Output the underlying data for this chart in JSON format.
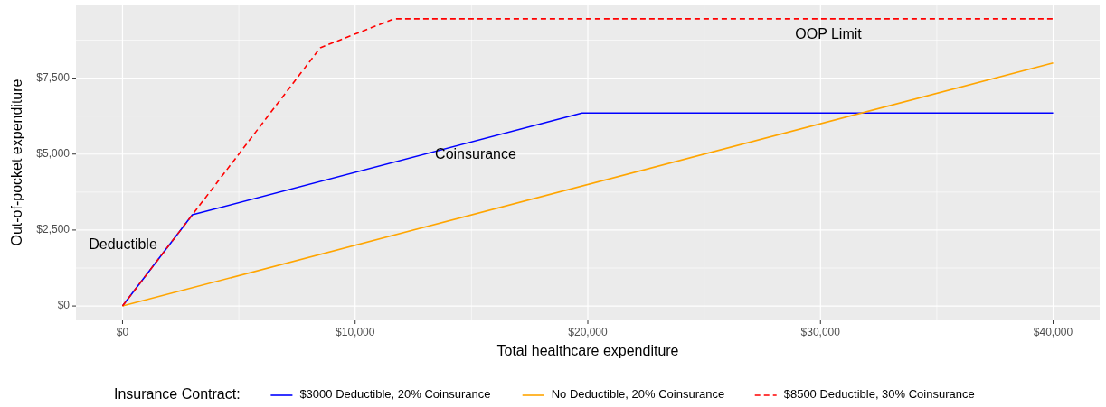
{
  "chart_data": {
    "type": "line",
    "xlabel": "Total healthcare expenditure",
    "ylabel": "Out-of-pocket expenditure",
    "legend_title": "Insurance Contract:",
    "legend": "bottom",
    "grid": true,
    "xlim": [
      -2000,
      42000
    ],
    "ylim": [
      -472.5,
      9922.5
    ],
    "xticks": [
      {
        "value": 0,
        "label": "$0"
      },
      {
        "value": 10000,
        "label": "$10,000"
      },
      {
        "value": 20000,
        "label": "$20,000"
      },
      {
        "value": 30000,
        "label": "$30,000"
      },
      {
        "value": 40000,
        "label": "$40,000"
      }
    ],
    "yticks": [
      {
        "value": 0,
        "label": "$0"
      },
      {
        "value": 2500,
        "label": "$2,500"
      },
      {
        "value": 5000,
        "label": "$5,000"
      },
      {
        "value": 7500,
        "label": "$7,500"
      }
    ],
    "series": [
      {
        "name": "$3000 Deductible, 20% Coinsurance",
        "color": "#0000ff",
        "line_style": "solid",
        "x": [
          0,
          3000,
          19750,
          40000
        ],
        "values": [
          0,
          3000,
          6350,
          6350
        ]
      },
      {
        "name": "No Deductible, 20% Coinsurance",
        "color": "#ffa500",
        "line_style": "solid",
        "x": [
          0,
          40000
        ],
        "values": [
          0,
          8000
        ]
      },
      {
        "name": "$8500 Deductible, 30% Coinsurance",
        "color": "#ff0000",
        "line_style": "dashed",
        "x": [
          0,
          8500,
          11667,
          40000
        ],
        "values": [
          0,
          8500,
          9450,
          9450
        ]
      }
    ],
    "annotations": [
      "Deductible",
      "Coinsurance",
      "OOP Limit"
    ]
  }
}
